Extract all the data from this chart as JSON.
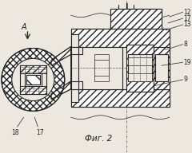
{
  "fig_label": "Фиг. 2",
  "section_label": "I",
  "arrow_label": "А",
  "bg_color": "#ede8df",
  "line_color": "#222222",
  "labels_right": [
    [
      "12",
      195,
      14
    ],
    [
      "17",
      195,
      22
    ],
    [
      "13",
      195,
      30
    ],
    [
      "8",
      195,
      55
    ],
    [
      "19",
      195,
      78
    ],
    [
      "9",
      195,
      100
    ]
  ],
  "labels_bottom": [
    [
      "18",
      22,
      162
    ],
    [
      "17",
      48,
      162
    ]
  ]
}
